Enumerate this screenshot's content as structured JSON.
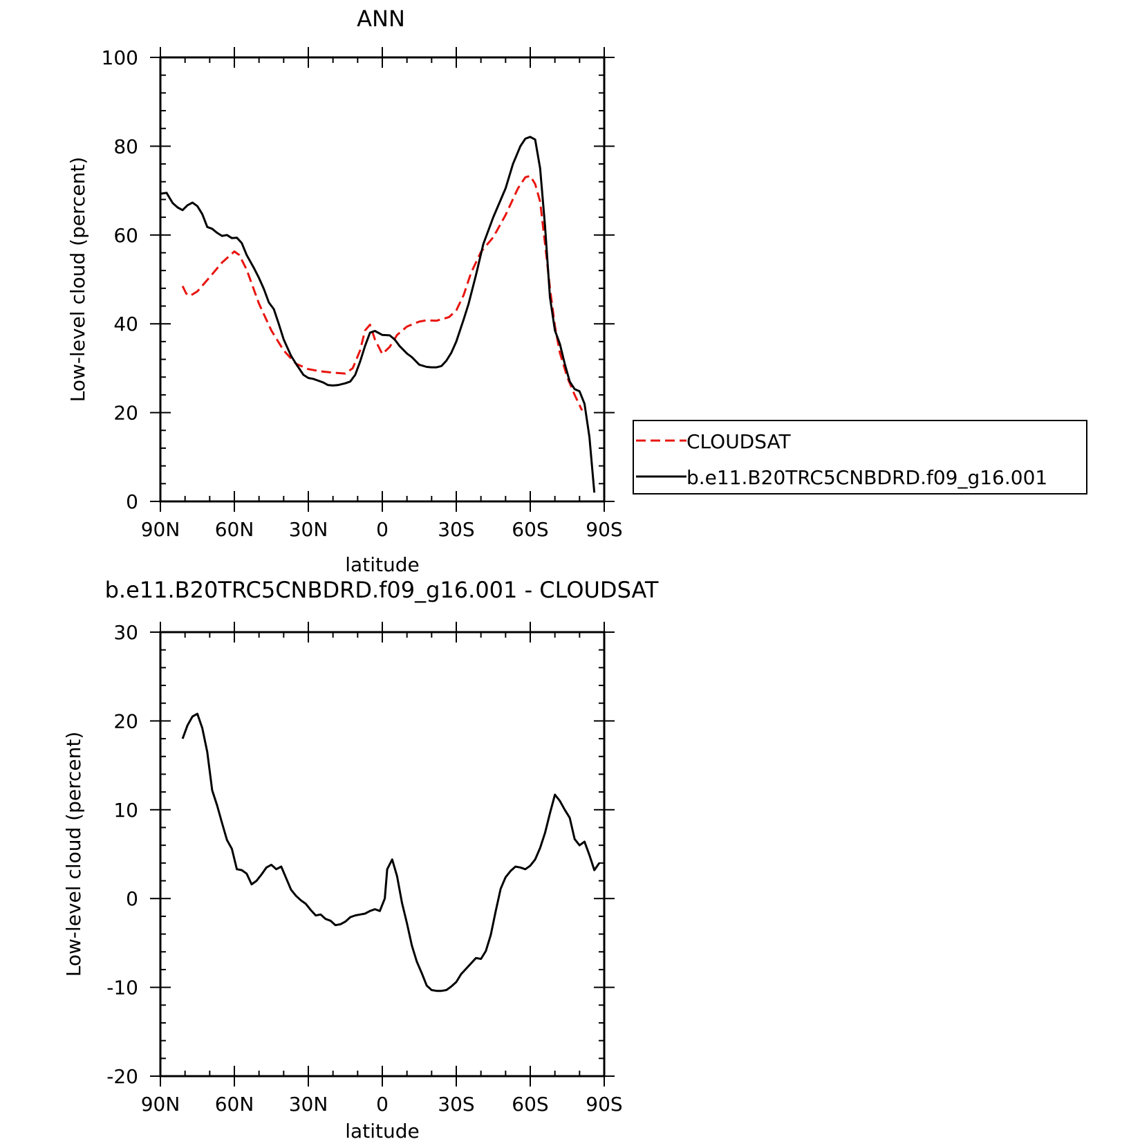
{
  "chart_data": [
    {
      "type": "line",
      "title": "ANN",
      "xlabel": "latitude",
      "ylabel": "Low-level cloud (percent)",
      "xlim": [
        90,
        -90
      ],
      "ylim": [
        0,
        100
      ],
      "x_ticks": [
        90,
        60,
        30,
        0,
        -30,
        -60,
        -90
      ],
      "x_tick_labels": [
        "90N",
        "60N",
        "30N",
        "0",
        "30S",
        "60S",
        "90S"
      ],
      "y_ticks": [
        0,
        20,
        40,
        60,
        80,
        100
      ],
      "y_tick_labels": [
        "0",
        "20",
        "40",
        "60",
        "80",
        "100"
      ],
      "grid": false,
      "legend": {
        "placement": "right, outside plot"
      },
      "series": [
        {
          "name": "CLOUDSAT",
          "color": "#e8140f",
          "dash": "dashed",
          "points": [
            [
              81,
              48.5
            ],
            [
              79.5,
              46.8
            ],
            [
              78,
              46.3
            ],
            [
              75,
              47.3
            ],
            [
              70,
              50.5
            ],
            [
              65,
              53.8
            ],
            [
              60,
              56.3
            ],
            [
              58,
              55.5
            ],
            [
              55,
              52.2
            ],
            [
              50,
              44.5
            ],
            [
              45,
              38.5
            ],
            [
              40,
              34
            ],
            [
              35,
              31
            ],
            [
              30,
              29.8
            ],
            [
              25,
              29.3
            ],
            [
              20,
              29
            ],
            [
              15,
              28.8
            ],
            [
              12,
              30
            ],
            [
              9,
              34
            ],
            [
              7,
              38.5
            ],
            [
              5,
              39.8
            ],
            [
              3,
              36.5
            ],
            [
              0,
              33.2
            ],
            [
              -3,
              34.8
            ],
            [
              -6,
              37.5
            ],
            [
              -10,
              39.4
            ],
            [
              -15,
              40.5
            ],
            [
              -18,
              40.8
            ],
            [
              -22,
              40.7
            ],
            [
              -27,
              41.5
            ],
            [
              -30,
              43
            ],
            [
              -33,
              46.5
            ],
            [
              -36,
              51.5
            ],
            [
              -40,
              56.2
            ],
            [
              -45,
              59.5
            ],
            [
              -50,
              64.5
            ],
            [
              -55,
              70.5
            ],
            [
              -58,
              73
            ],
            [
              -60,
              73.3
            ],
            [
              -62,
              71.5
            ],
            [
              -64,
              67.5
            ],
            [
              -66,
              58
            ],
            [
              -68,
              48
            ],
            [
              -70,
              39.5
            ],
            [
              -72,
              33.5
            ],
            [
              -75,
              28
            ],
            [
              -78,
              24
            ],
            [
              -81,
              20.5
            ]
          ]
        },
        {
          "name": "b.e11.B20TRC5CNBDRD.f09_g16.001",
          "color": "#000000",
          "dash": "solid",
          "points": [
            [
              90,
              69.3
            ],
            [
              87.5,
              69.5
            ],
            [
              85,
              67.2
            ],
            [
              83,
              66.2
            ],
            [
              81,
              65.6
            ],
            [
              79,
              66.7
            ],
            [
              77,
              67.3
            ],
            [
              75,
              66.5
            ],
            [
              73,
              64.7
            ],
            [
              71,
              61.8
            ],
            [
              69,
              61.4
            ],
            [
              67,
              60.5
            ],
            [
              65,
              59.8
            ],
            [
              63,
              60
            ],
            [
              61,
              59.3
            ],
            [
              59,
              59.4
            ],
            [
              57,
              58.2
            ],
            [
              55,
              55.5
            ],
            [
              52,
              52.5
            ],
            [
              50,
              50.3
            ],
            [
              48,
              47.8
            ],
            [
              46,
              44.8
            ],
            [
              44,
              43.3
            ],
            [
              42,
              40
            ],
            [
              40,
              36.5
            ],
            [
              37,
              32.8
            ],
            [
              35,
              31
            ],
            [
              32,
              28.5
            ],
            [
              30,
              27.8
            ],
            [
              28,
              27.6
            ],
            [
              26,
              27.2
            ],
            [
              24,
              26.8
            ],
            [
              22,
              26.2
            ],
            [
              20,
              26.1
            ],
            [
              18,
              26.2
            ],
            [
              15,
              26.6
            ],
            [
              13,
              27
            ],
            [
              11,
              28.5
            ],
            [
              9,
              31.5
            ],
            [
              7,
              35
            ],
            [
              5,
              38
            ],
            [
              3,
              38.4
            ],
            [
              0,
              37.5
            ],
            [
              -3,
              37.4
            ],
            [
              -5,
              36.5
            ],
            [
              -7,
              35
            ],
            [
              -10,
              33.3
            ],
            [
              -12,
              32.5
            ],
            [
              -15,
              30.8
            ],
            [
              -18,
              30.3
            ],
            [
              -20,
              30.2
            ],
            [
              -22,
              30.2
            ],
            [
              -24,
              30.5
            ],
            [
              -26,
              31.7
            ],
            [
              -28,
              33.5
            ],
            [
              -30,
              36
            ],
            [
              -33,
              41
            ],
            [
              -35,
              44.5
            ],
            [
              -38,
              51
            ],
            [
              -41,
              58
            ],
            [
              -45,
              64
            ],
            [
              -50,
              70.5
            ],
            [
              -53,
              76
            ],
            [
              -56,
              80
            ],
            [
              -58,
              81.7
            ],
            [
              -60,
              82.1
            ],
            [
              -62,
              81.5
            ],
            [
              -64,
              75
            ],
            [
              -66,
              62
            ],
            [
              -68,
              46
            ],
            [
              -70,
              38.5
            ],
            [
              -72,
              35.5
            ],
            [
              -74,
              31
            ],
            [
              -76,
              27
            ],
            [
              -78,
              25.3
            ],
            [
              -80,
              24.8
            ],
            [
              -82,
              22
            ],
            [
              -84,
              14.5
            ],
            [
              -86,
              2
            ]
          ]
        }
      ]
    },
    {
      "type": "line",
      "title": "b.e11.B20TRC5CNBDRD.f09_g16.001 - CLOUDSAT",
      "xlabel": "latitude",
      "ylabel": "Low-level cloud (percent)",
      "xlim": [
        90,
        -90
      ],
      "ylim": [
        -20,
        30
      ],
      "x_ticks": [
        90,
        60,
        30,
        0,
        -30,
        -60,
        -90
      ],
      "x_tick_labels": [
        "90N",
        "60N",
        "30N",
        "0",
        "30S",
        "60S",
        "90S"
      ],
      "y_ticks": [
        -20,
        -10,
        0,
        10,
        20,
        30
      ],
      "y_tick_labels": [
        "-20",
        "-10",
        "0",
        "10",
        "20",
        "30"
      ],
      "grid": false,
      "series": [
        {
          "color": "#000000",
          "dash": "solid",
          "points": [
            [
              81,
              18
            ],
            [
              79,
              19.5
            ],
            [
              77,
              20.5
            ],
            [
              75,
              20.8
            ],
            [
              73,
              19.2
            ],
            [
              71,
              16.5
            ],
            [
              69,
              12.2
            ],
            [
              67,
              10.5
            ],
            [
              65,
              8.5
            ],
            [
              63,
              6.6
            ],
            [
              61,
              5.6
            ],
            [
              59,
              3.3
            ],
            [
              57,
              3.2
            ],
            [
              55,
              2.8
            ],
            [
              53,
              1.6
            ],
            [
              51,
              2
            ],
            [
              49,
              2.7
            ],
            [
              47,
              3.5
            ],
            [
              45,
              3.8
            ],
            [
              43,
              3.3
            ],
            [
              41,
              3.6
            ],
            [
              39,
              2.3
            ],
            [
              37,
              1
            ],
            [
              35,
              0.3
            ],
            [
              33,
              -0.2
            ],
            [
              31,
              -0.6
            ],
            [
              29,
              -1.3
            ],
            [
              27,
              -1.9
            ],
            [
              25,
              -1.8
            ],
            [
              23,
              -2.3
            ],
            [
              21,
              -2.5
            ],
            [
              19,
              -3
            ],
            [
              17,
              -2.9
            ],
            [
              15,
              -2.6
            ],
            [
              13,
              -2.1
            ],
            [
              11,
              -1.9
            ],
            [
              9,
              -1.8
            ],
            [
              7,
              -1.7
            ],
            [
              5,
              -1.4
            ],
            [
              3,
              -1.2
            ],
            [
              1,
              -1.4
            ],
            [
              -1,
              0
            ],
            [
              -2,
              3.3
            ],
            [
              -4,
              4.4
            ],
            [
              -6,
              2.5
            ],
            [
              -8,
              -0.5
            ],
            [
              -10,
              -2.8
            ],
            [
              -12,
              -5.3
            ],
            [
              -14,
              -7.1
            ],
            [
              -16,
              -8.4
            ],
            [
              -18,
              -9.8
            ],
            [
              -20,
              -10.3
            ],
            [
              -22,
              -10.4
            ],
            [
              -24,
              -10.4
            ],
            [
              -26,
              -10.3
            ],
            [
              -28,
              -9.9
            ],
            [
              -30,
              -9.4
            ],
            [
              -32,
              -8.5
            ],
            [
              -34,
              -7.9
            ],
            [
              -36,
              -7.3
            ],
            [
              -38,
              -6.7
            ],
            [
              -40,
              -6.8
            ],
            [
              -42,
              -5.9
            ],
            [
              -44,
              -4.1
            ],
            [
              -46,
              -1.4
            ],
            [
              -48,
              1.1
            ],
            [
              -50,
              2.4
            ],
            [
              -52,
              3.1
            ],
            [
              -54,
              3.6
            ],
            [
              -56,
              3.5
            ],
            [
              -58,
              3.3
            ],
            [
              -60,
              3.7
            ],
            [
              -62,
              4.4
            ],
            [
              -64,
              5.7
            ],
            [
              -66,
              7.4
            ],
            [
              -68,
              9.6
            ],
            [
              -70,
              11.7
            ],
            [
              -72,
              11
            ],
            [
              -74,
              10
            ],
            [
              -76,
              9.1
            ],
            [
              -78,
              6.7
            ],
            [
              -80,
              6
            ],
            [
              -82,
              6.4
            ],
            [
              -84,
              4.9
            ],
            [
              -86,
              3.2
            ],
            [
              -88,
              4
            ]
          ]
        }
      ]
    }
  ]
}
